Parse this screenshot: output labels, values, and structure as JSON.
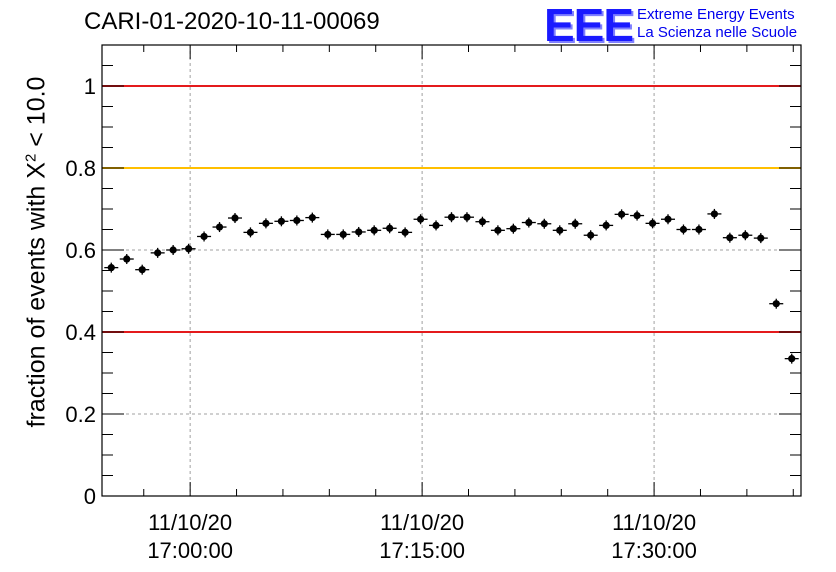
{
  "title": "CARI-01-2020-10-11-00069",
  "logo": {
    "mark": "EEE",
    "line1": "Extreme Energy Events",
    "line2": "La Scienza nelle Scuole",
    "color": "#1a1aff"
  },
  "chart_data": {
    "type": "scatter",
    "ylabel": {
      "prefix": "fraction of events with ",
      "symbol": "X",
      "exponent": "2",
      "suffix": " < 10.0"
    },
    "ylim": [
      0,
      1.1
    ],
    "yticks": [
      0,
      0.2,
      0.4,
      0.6,
      0.8,
      1
    ],
    "ytick_labels": [
      "0",
      "0.2",
      "0.4",
      "0.6",
      "0.8",
      "1"
    ],
    "x_unit": "minutes",
    "xlim": [
      -5.7,
      39.5
    ],
    "xticks": [
      {
        "value": 0,
        "date": "11/10/20",
        "time": "17:00:00"
      },
      {
        "value": 15,
        "date": "11/10/20",
        "time": "17:15:00"
      },
      {
        "value": 30,
        "date": "11/10/20",
        "time": "17:30:00"
      }
    ],
    "grid": true,
    "reference_lines": [
      {
        "y": 1.0,
        "color": "#e41a1c"
      },
      {
        "y": 0.8,
        "color": "#ffbf00"
      },
      {
        "y": 0.4,
        "color": "#e41a1c"
      }
    ],
    "point_color": "#000000",
    "x": [
      -5.1,
      -4.1,
      -3.1,
      -2.1,
      -1.1,
      -0.1,
      0.9,
      1.9,
      2.9,
      3.9,
      4.9,
      5.9,
      6.9,
      7.9,
      8.9,
      9.9,
      10.9,
      11.9,
      12.9,
      13.9,
      14.9,
      15.9,
      16.9,
      17.9,
      18.9,
      19.9,
      20.9,
      21.9,
      22.9,
      23.9,
      24.9,
      25.9,
      26.9,
      27.9,
      28.9,
      29.9,
      30.9,
      31.9,
      32.9,
      33.9,
      34.9,
      35.9,
      36.9,
      37.9,
      38.9
    ],
    "values": [
      0.557,
      0.578,
      0.552,
      0.593,
      0.6,
      0.603,
      0.633,
      0.656,
      0.678,
      0.643,
      0.665,
      0.67,
      0.672,
      0.679,
      0.638,
      0.638,
      0.644,
      0.648,
      0.653,
      0.643,
      0.675,
      0.66,
      0.68,
      0.68,
      0.669,
      0.648,
      0.652,
      0.667,
      0.664,
      0.648,
      0.664,
      0.636,
      0.66,
      0.687,
      0.684,
      0.665,
      0.675,
      0.65,
      0.65,
      0.688,
      0.63,
      0.636,
      0.629,
      0.469,
      0.335
    ]
  }
}
